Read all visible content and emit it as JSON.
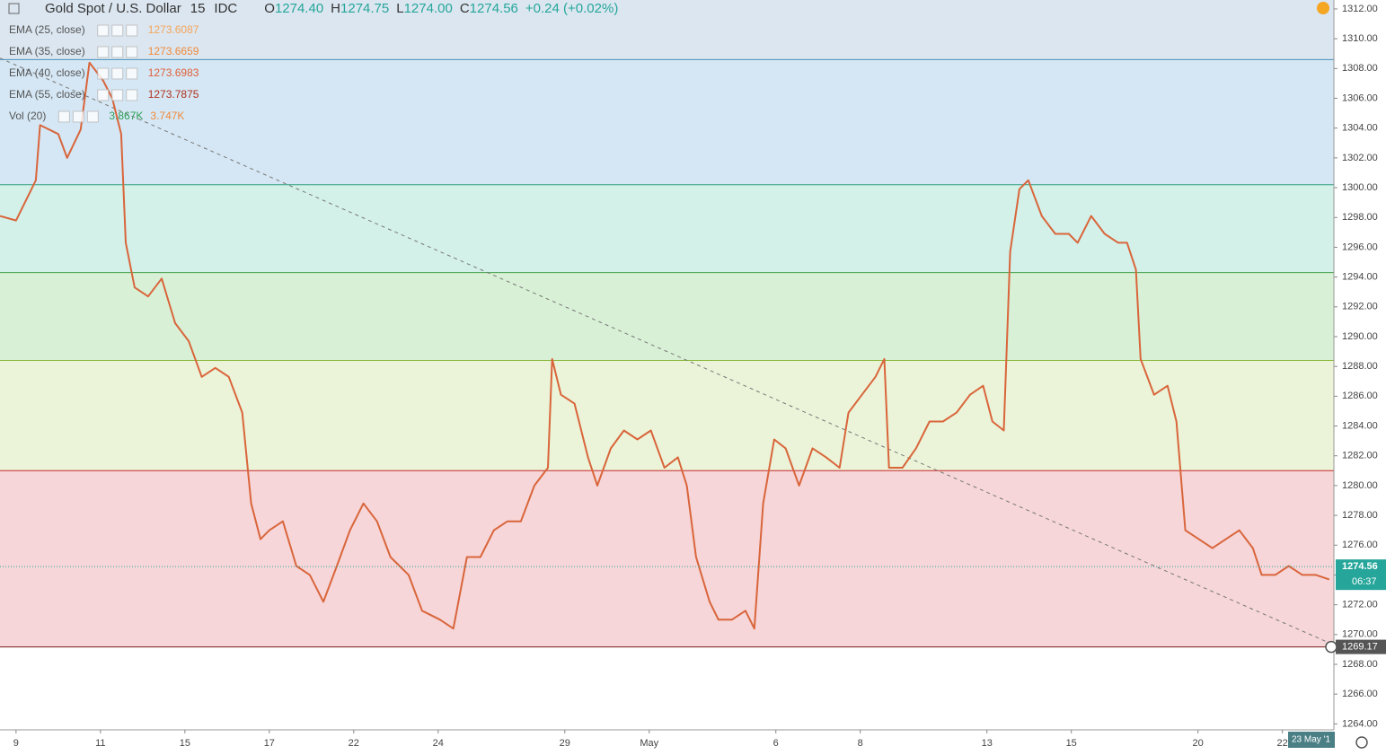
{
  "chart_data": {
    "type": "line",
    "title": "Gold Spot / U.S. Dollar",
    "interval": "15",
    "source": "IDC",
    "ohlc": [
      {
        "label": "O",
        "value": "1274.40"
      },
      {
        "label": "H",
        "value": "1274.75"
      },
      {
        "label": "L",
        "value": "1274.00"
      },
      {
        "label": "C",
        "value": "1274.56"
      }
    ],
    "change": "+0.24 (+0.02%)",
    "indicators": [
      {
        "name": "EMA (25, close)",
        "values": [
          "1273.6087"
        ],
        "colors": [
          "#f5a55a"
        ]
      },
      {
        "name": "EMA (35, close)",
        "values": [
          "1273.6659"
        ],
        "colors": [
          "#f08a3c"
        ]
      },
      {
        "name": "EMA (40, close)",
        "values": [
          "1273.6983"
        ],
        "colors": [
          "#e0603a"
        ]
      },
      {
        "name": "EMA (55, close)",
        "values": [
          "1273.7875"
        ],
        "colors": [
          "#b0301e"
        ]
      },
      {
        "name": "Vol (20)",
        "values": [
          "3.867K",
          "3.747K"
        ],
        "colors": [
          "#2e9e5a",
          "#f08a3c"
        ]
      }
    ],
    "x": [
      -0.38,
      0,
      0.47,
      0.57,
      1.0,
      1.21,
      1.53,
      1.74,
      2.06,
      2.28,
      2.49,
      2.6,
      2.81,
      3.13,
      3.45,
      3.77,
      4.09,
      4.4,
      4.72,
      5.04,
      5.36,
      5.57,
      5.79,
      6.0,
      6.32,
      6.64,
      6.96,
      7.28,
      7.6,
      7.91,
      8.23,
      8.55,
      8.87,
      9.3,
      9.62,
      10.04,
      10.36,
      10.68,
      11.0,
      11.32,
      11.64,
      11.96,
      12.28,
      12.6,
      12.7,
      12.91,
      13.23,
      13.55,
      13.77,
      14.09,
      14.4,
      14.72,
      15.04,
      15.36,
      15.68,
      15.89,
      16.11,
      16.43,
      16.64,
      16.96,
      17.28,
      17.49,
      17.7,
      17.96,
      18.23,
      18.55,
      18.87,
      19.19,
      19.51,
      19.72,
      20.04,
      20.36,
      20.57,
      20.68,
      21.0,
      21.32,
      21.64,
      21.96,
      22.28,
      22.6,
      22.91,
      23.13,
      23.4,
      23.55,
      23.77,
      23.98,
      24.3,
      24.62,
      24.94,
      25.15,
      25.47,
      25.79,
      26.11,
      26.32,
      26.53,
      26.64,
      26.96,
      27.28,
      27.49,
      27.7,
      28.02,
      28.34,
      28.66,
      28.98,
      29.3,
      29.51,
      29.83,
      30.15,
      30.47,
      30.79,
      31.11
    ],
    "values": [
      1298.1,
      1297.8,
      1300.5,
      1304.2,
      1303.6,
      1302.0,
      1303.9,
      1308.4,
      1307.2,
      1306.0,
      1303.6,
      1296.3,
      1293.3,
      1292.7,
      1293.9,
      1290.9,
      1289.7,
      1287.3,
      1287.9,
      1287.3,
      1284.9,
      1278.8,
      1276.4,
      1277.0,
      1277.6,
      1274.6,
      1274.0,
      1272.2,
      1274.6,
      1277.0,
      1278.8,
      1277.6,
      1275.2,
      1274.0,
      1271.6,
      1271.0,
      1270.4,
      1275.2,
      1275.2,
      1277.0,
      1277.6,
      1277.6,
      1280.0,
      1281.2,
      1288.5,
      1286.1,
      1285.5,
      1281.9,
      1280.0,
      1282.5,
      1283.7,
      1283.1,
      1283.7,
      1281.2,
      1281.9,
      1280.0,
      1275.2,
      1272.2,
      1271.0,
      1271.0,
      1271.6,
      1270.4,
      1278.8,
      1283.1,
      1282.5,
      1280.0,
      1282.5,
      1281.9,
      1281.2,
      1284.9,
      1286.1,
      1287.3,
      1288.5,
      1281.2,
      1281.2,
      1282.5,
      1284.3,
      1284.3,
      1284.9,
      1286.1,
      1286.7,
      1284.3,
      1283.7,
      1295.7,
      1299.9,
      1300.5,
      1298.1,
      1296.9,
      1296.9,
      1296.3,
      1298.1,
      1296.9,
      1296.3,
      1296.3,
      1294.5,
      1288.5,
      1286.1,
      1286.7,
      1284.3,
      1277.0,
      1276.4,
      1275.8,
      1276.4,
      1277.0,
      1275.8,
      1274.0,
      1274.0,
      1274.6,
      1274.0,
      1274.0,
      1273.7
    ],
    "color": "#d9653b",
    "xlim": [
      -0.38,
      31.22
    ],
    "xticks": [
      {
        "value": 0,
        "label": "9"
      },
      {
        "value": 2,
        "label": "11"
      },
      {
        "value": 4,
        "label": "15"
      },
      {
        "value": 6,
        "label": "17"
      },
      {
        "value": 8,
        "label": "22"
      },
      {
        "value": 10,
        "label": "24"
      },
      {
        "value": 13,
        "label": "29"
      },
      {
        "value": 15,
        "label": "May"
      },
      {
        "value": 18,
        "label": "6"
      },
      {
        "value": 20,
        "label": "8"
      },
      {
        "value": 23,
        "label": "13"
      },
      {
        "value": 25,
        "label": "15"
      },
      {
        "value": 28,
        "label": "20"
      },
      {
        "value": 30,
        "label": "22"
      }
    ],
    "ylim": [
      1263.6,
      1312.6
    ],
    "yticks": [
      {
        "value": 1264,
        "label": "1264.00"
      },
      {
        "value": 1266,
        "label": "1266.00"
      },
      {
        "value": 1268,
        "label": "1268.00"
      },
      {
        "value": 1270,
        "label": "1270.00"
      },
      {
        "value": 1272,
        "label": "1272.00"
      },
      {
        "value": 1274,
        "label": "1274.00"
      },
      {
        "value": 1276,
        "label": "1276.00"
      },
      {
        "value": 1278,
        "label": "1278.00"
      },
      {
        "value": 1280,
        "label": "1280.00"
      },
      {
        "value": 1282,
        "label": "1282.00"
      },
      {
        "value": 1284,
        "label": "1284.00"
      },
      {
        "value": 1286,
        "label": "1286.00"
      },
      {
        "value": 1288,
        "label": "1288.00"
      },
      {
        "value": 1290,
        "label": "1290.00"
      },
      {
        "value": 1292,
        "label": "1292.00"
      },
      {
        "value": 1294,
        "label": "1294.00"
      },
      {
        "value": 1296,
        "label": "1296.00"
      },
      {
        "value": 1298,
        "label": "1298.00"
      },
      {
        "value": 1300,
        "label": "1300.00"
      },
      {
        "value": 1302,
        "label": "1302.00"
      },
      {
        "value": 1304,
        "label": "1304.00"
      },
      {
        "value": 1306,
        "label": "1306.00"
      },
      {
        "value": 1308,
        "label": "1308.00"
      },
      {
        "value": 1310,
        "label": "1310.00"
      },
      {
        "value": 1312,
        "label": "1312.00"
      }
    ],
    "levels": [
      1308.6,
      1300.2,
      1294.3,
      1288.4,
      1281.0,
      1269.17
    ],
    "level_colors": [
      "#4a90b8",
      "#2e9e80",
      "#43a047",
      "#8bb83a",
      "#c62828",
      "#7a1d1d"
    ],
    "band_colors": [
      "#d5e7f4",
      "#d3f1e8",
      "#d8f1d6",
      "#ebf4d8",
      "#f6d6d8"
    ],
    "trendline": {
      "x": [
        -0.38,
        31.22
      ],
      "y": [
        1308.7,
        1269.3
      ],
      "color": "#777777"
    },
    "last_price": {
      "value": 1274.56,
      "label": "1274.56",
      "countdown": "06:37",
      "color": "#26a69a"
    },
    "marker_price": {
      "value": 1269.17,
      "label": "1269.17"
    },
    "cursor_date": "23 May '1"
  }
}
